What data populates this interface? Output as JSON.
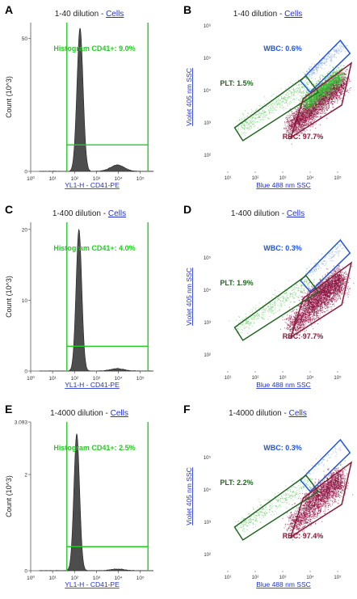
{
  "colors": {
    "hist_fill": "#4d4d4d",
    "gate_green": "#22cc22",
    "plt_gate": "#226622",
    "rbc_gate": "#8b1a3a",
    "wbc_gate": "#2255dd",
    "link_blue": "#2233cc",
    "rbc_dots": "#8b0a3a",
    "plt_dots": "#66cc66"
  },
  "chart_data": [
    {
      "panel": "A",
      "type": "area",
      "title_prefix": "1-40 dilution - ",
      "title_link": "Cells",
      "xlabel": "YL1-H - CD41-PE",
      "ylabel": "Count (10^3)",
      "xscale": "log",
      "xticks": [
        "10⁰",
        "10¹",
        "10²",
        "10³",
        "10⁴",
        "10⁵"
      ],
      "yticks": [
        "0",
        "50"
      ],
      "yticks_values": [
        0,
        50
      ],
      "ymax": 56,
      "gate_label": "Histogram CD41+: 9.0%",
      "gate_low": 1.65,
      "gate_high": 5.35,
      "gate_level": 10,
      "peaks": [
        {
          "mu": 2.25,
          "sigma": 0.14,
          "amp": 54
        },
        {
          "mu": 3.95,
          "sigma": 0.32,
          "amp": 2.4
        }
      ]
    },
    {
      "panel": "B",
      "type": "scatter",
      "title_prefix": "1-40 dilution - ",
      "title_link": "Cells",
      "xlabel": "Blue 488 nm SSC",
      "ylabel": "Violet 405 nm SSC",
      "xscale": "log",
      "yscale": "log",
      "xticks": [
        "10¹",
        "10²",
        "10³",
        "10⁴",
        "10⁵"
      ],
      "yticks": [
        "10²",
        "10³",
        "10⁴",
        "10⁵",
        "10⁶"
      ],
      "gates": [
        {
          "name": "WBC",
          "label": "WBC: 0.6%"
        },
        {
          "name": "PLT",
          "label": "PLT: 1.5%"
        },
        {
          "name": "RBC",
          "label": "RBC: 97.7%"
        }
      ],
      "density": {
        "rbc": 1.0,
        "plt": 0.6,
        "wbc": 0.5
      }
    },
    {
      "panel": "C",
      "type": "area",
      "title_prefix": "1-400 dilution - ",
      "title_link": "Cells",
      "xlabel": "YL1-H - CD41-PE",
      "ylabel": "Count (10^3)",
      "xscale": "log",
      "xticks": [
        "10⁰",
        "10¹",
        "10²",
        "10³",
        "10⁴",
        "10⁵"
      ],
      "yticks": [
        "0",
        "10",
        "20"
      ],
      "yticks_values": [
        0,
        10,
        20
      ],
      "ymax": 21,
      "gate_label": "Histogram CD41+: 4.0%",
      "gate_low": 1.65,
      "gate_high": 5.35,
      "gate_level": 3.5,
      "peaks": [
        {
          "mu": 2.2,
          "sigma": 0.13,
          "amp": 20
        },
        {
          "mu": 3.95,
          "sigma": 0.32,
          "amp": 0.35
        }
      ]
    },
    {
      "panel": "D",
      "type": "scatter",
      "title_prefix": "1-400 dilution - ",
      "title_link": "Cells",
      "xlabel": "Blue 488 nm SSC",
      "ylabel": "Violet 405 nm SSC",
      "xscale": "log",
      "yscale": "log",
      "xticks": [
        "10¹",
        "10²",
        "10³",
        "10⁴",
        "10⁵"
      ],
      "yticks": [
        "10²",
        "10³",
        "10⁴",
        "10⁵"
      ],
      "gates": [
        {
          "name": "WBC",
          "label": "WBC: 0.3%"
        },
        {
          "name": "PLT",
          "label": "PLT: 1.9%"
        },
        {
          "name": "RBC",
          "label": "RBC: 97.7%"
        }
      ],
      "density": {
        "rbc": 0.7,
        "plt": 0.5,
        "wbc": 0.25
      }
    },
    {
      "panel": "E",
      "type": "area",
      "title_prefix": "1-4000 dilution - ",
      "title_link": "Cells",
      "xlabel": "YL1-H - CD41-PE",
      "ylabel": "Count (10^3)",
      "xscale": "log",
      "xticks": [
        "10⁰",
        "10¹",
        "10²",
        "10³",
        "10⁴",
        "10⁵"
      ],
      "yticks": [
        "0",
        "2",
        "3.093"
      ],
      "yticks_values": [
        0,
        2,
        3.093
      ],
      "ymax": 3.093,
      "gate_label": "Histogram CD41+: 2.5%",
      "gate_low": 1.65,
      "gate_high": 5.35,
      "gate_level": 0.5,
      "peaks": [
        {
          "mu": 2.1,
          "sigma": 0.13,
          "amp": 2.85
        },
        {
          "mu": 3.95,
          "sigma": 0.32,
          "amp": 0.035
        }
      ]
    },
    {
      "panel": "F",
      "type": "scatter",
      "title_prefix": "1-4000 dilution - ",
      "title_link": "Cells",
      "xlabel": "Blue 488 nm SSC",
      "ylabel": "Violet 405 nm SSC",
      "xscale": "log",
      "yscale": "log",
      "xticks": [
        "10¹",
        "10²",
        "10³",
        "10⁴",
        "10⁵"
      ],
      "yticks": [
        "10²",
        "10³",
        "10⁴",
        "10⁵"
      ],
      "gates": [
        {
          "name": "WBC",
          "label": "WBC: 0.3%"
        },
        {
          "name": "PLT",
          "label": "PLT: 2.2%"
        },
        {
          "name": "RBC",
          "label": "RBC: 97.4%"
        }
      ],
      "density": {
        "rbc": 0.55,
        "plt": 0.45,
        "wbc": 0.12
      }
    }
  ]
}
